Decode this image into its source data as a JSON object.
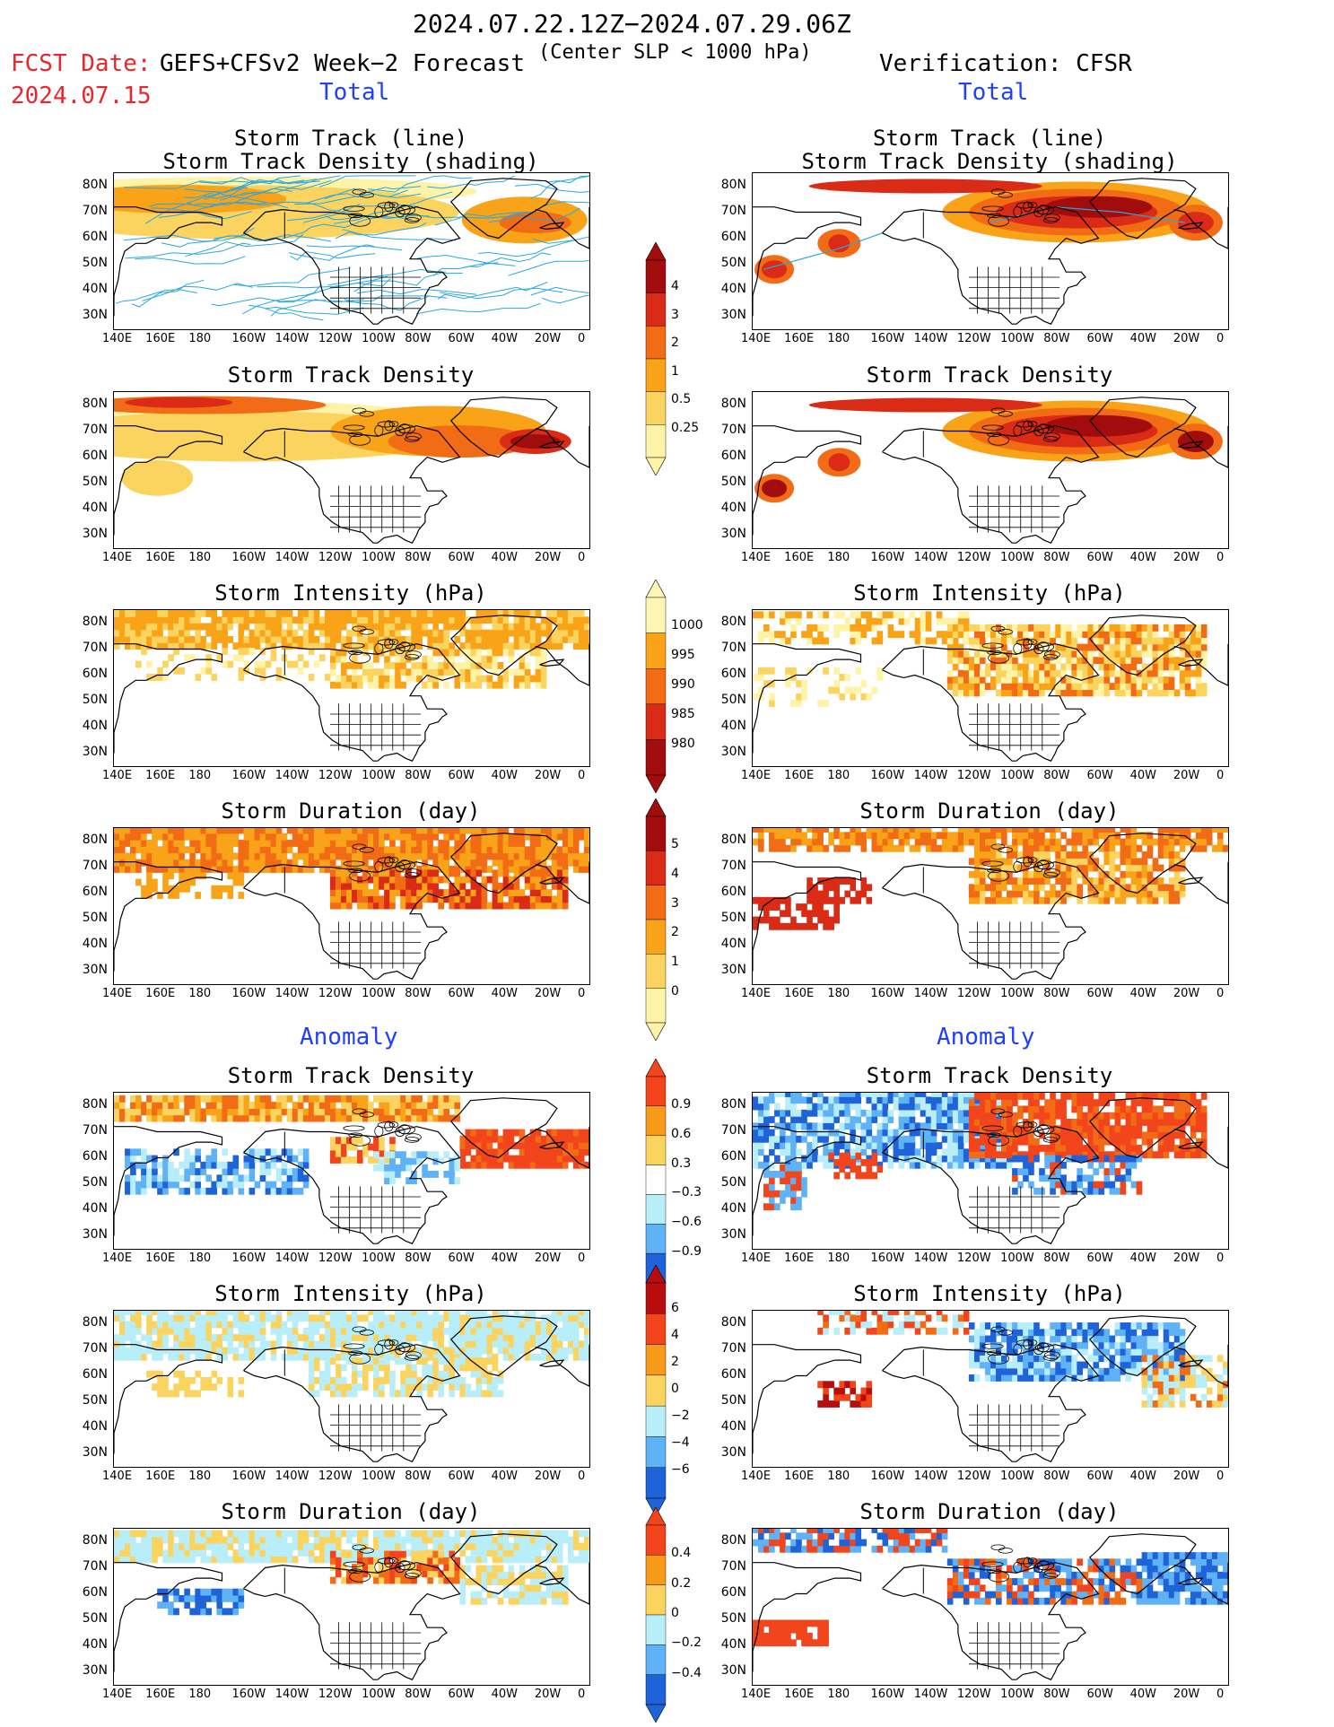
{
  "header": {
    "period": "2024.07.22.12Z−2024.07.29.06Z",
    "fcst_label": "FCST Date:",
    "fcst_date": "2024.07.15",
    "model": "GEFS+CFSv2 Week−2 Forecast",
    "criterion": "(Center SLP < 1000 hPa)",
    "verification": "Verification: CFSR"
  },
  "sections": {
    "total": "Total",
    "anomaly": "Anomaly"
  },
  "panel_titles": {
    "track_line": "Storm Track (line)",
    "track_shading": "Storm Track Density (shading)",
    "density": "Storm Track Density",
    "intensity": "Storm Intensity (hPa)",
    "duration": "Storm Duration (day)"
  },
  "axes": {
    "lat": [
      "80N",
      "70N",
      "60N",
      "50N",
      "40N",
      "30N"
    ],
    "lon": [
      "140E",
      "160E",
      "180",
      "160W",
      "140W",
      "120W",
      "100W",
      "80W",
      "60W",
      "40W",
      "20W",
      "0"
    ]
  },
  "colorbars": {
    "density_total": {
      "labels": [
        "4",
        "3",
        "2",
        "1",
        "0.5",
        "0.25"
      ],
      "colors": [
        "#a10c0c",
        "#d92b16",
        "#f26b15",
        "#f8a318",
        "#fbd35f",
        "#fff3a8"
      ]
    },
    "intensity_total": {
      "labels": [
        "1000",
        "995",
        "990",
        "985",
        "980"
      ],
      "colors": [
        "#fff6b3",
        "#f8a318",
        "#f26b15",
        "#d92b16",
        "#a10c0c"
      ]
    },
    "duration_total": {
      "labels": [
        "5",
        "4",
        "3",
        "2",
        "1",
        "0"
      ],
      "colors": [
        "#a10c0c",
        "#d92b16",
        "#f26b15",
        "#f8a318",
        "#fbd35f",
        "#fff3a8"
      ]
    },
    "density_anom": {
      "labels": [
        "0.9",
        "0.6",
        "0.3",
        "−0.3",
        "−0.6",
        "−0.9"
      ],
      "colors": [
        "#f2451c",
        "#f89a19",
        "#fbd45f",
        "#ffffff",
        "#b8eefa",
        "#5fb2f5",
        "#1f63d8"
      ]
    },
    "intensity_anom": {
      "labels": [
        "6",
        "4",
        "2",
        "0",
        "−2",
        "−4",
        "−6"
      ],
      "colors": [
        "#b80d0d",
        "#f2451c",
        "#f89a19",
        "#fbd45f",
        "#b8eefa",
        "#5fb2f5",
        "#1f63d8"
      ]
    },
    "duration_anom": {
      "labels": [
        "0.4",
        "0.2",
        "0",
        "−0.2",
        "−0.4"
      ],
      "colors": [
        "#f2451c",
        "#f89a19",
        "#fbd45f",
        "#b8eefa",
        "#5fb2f5",
        "#1f63d8"
      ]
    }
  },
  "palette": {
    "land_line": "#000000",
    "track_line": "#2aa7e0",
    "dark_red": "#a10c0c",
    "red": "#d92b16",
    "orange": "#f26b15",
    "lorange": "#f8a318",
    "yellow": "#fbd35f",
    "pale": "#fff3a8",
    "lblue": "#b8eefa",
    "mblue": "#5fb2f5",
    "dblue": "#1f63d8"
  }
}
